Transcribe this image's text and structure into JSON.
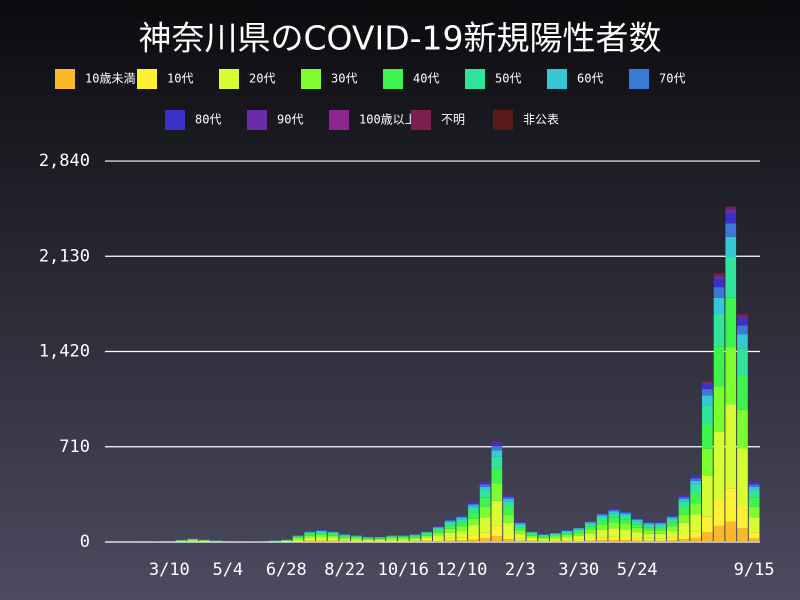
{
  "chart_data": {
    "type": "stacked_bar",
    "title": "神奈川県のCOVID-19新規陽性者数",
    "categories": [
      null,
      null,
      null,
      null,
      null,
      "3/10",
      null,
      null,
      null,
      null,
      "5/4",
      null,
      null,
      null,
      null,
      "6/28",
      null,
      null,
      null,
      null,
      "8/22",
      null,
      null,
      null,
      null,
      "10/16",
      null,
      null,
      null,
      null,
      "12/10",
      null,
      null,
      null,
      null,
      "2/3",
      null,
      null,
      null,
      null,
      "3/30",
      null,
      null,
      null,
      null,
      "5/24",
      null,
      null,
      null,
      null,
      null,
      null,
      null,
      null,
      null,
      "9/15"
    ],
    "series": [
      {
        "name": "10歳未満",
        "color": "#fbb92a",
        "values": [
          0,
          0,
          0,
          0,
          0,
          0,
          1,
          2,
          1,
          1,
          0,
          0,
          0,
          0,
          1,
          1,
          3,
          5,
          5,
          5,
          4,
          3,
          2,
          2,
          3,
          3,
          4,
          5,
          7,
          10,
          12,
          18,
          27,
          45,
          21,
          9,
          5,
          4,
          4,
          5,
          7,
          10,
          13,
          15,
          14,
          11,
          9,
          9,
          12,
          21,
          30,
          72,
          120,
          150,
          102,
          27
        ]
      },
      {
        "name": "10代",
        "color": "#fef131",
        "values": [
          0,
          0,
          0,
          0,
          1,
          1,
          2,
          3,
          2,
          1,
          1,
          1,
          0,
          1,
          1,
          2,
          5,
          8,
          9,
          8,
          6,
          5,
          4,
          4,
          5,
          5,
          6,
          8,
          12,
          17,
          20,
          30,
          45,
          75,
          35,
          15,
          8,
          6,
          7,
          9,
          11,
          16,
          22,
          25,
          23,
          18,
          15,
          15,
          20,
          35,
          50,
          120,
          200,
          250,
          170,
          45
        ]
      },
      {
        "name": "20代",
        "color": "#d6fe33",
        "values": [
          0,
          0,
          0,
          1,
          1,
          2,
          4,
          6,
          5,
          3,
          2,
          1,
          1,
          1,
          3,
          5,
          13,
          20,
          23,
          20,
          15,
          13,
          10,
          10,
          13,
          13,
          15,
          20,
          30,
          43,
          50,
          75,
          113,
          188,
          88,
          38,
          20,
          15,
          18,
          23,
          28,
          40,
          55,
          63,
          58,
          45,
          38,
          38,
          50,
          88,
          125,
          300,
          500,
          625,
          425,
          113
        ]
      },
      {
        "name": "30代",
        "color": "#7cfe2e",
        "values": [
          0,
          0,
          0,
          0,
          1,
          1,
          3,
          4,
          3,
          2,
          1,
          1,
          1,
          1,
          2,
          3,
          9,
          14,
          15,
          14,
          10,
          9,
          7,
          7,
          9,
          9,
          10,
          14,
          20,
          29,
          34,
          51,
          77,
          128,
          60,
          26,
          14,
          10,
          12,
          15,
          19,
          27,
          37,
          43,
          39,
          31,
          26,
          26,
          34,
          60,
          85,
          204,
          340,
          425,
          289,
          77
        ]
      },
      {
        "name": "40代",
        "color": "#3ef34b",
        "values": [
          0,
          0,
          0,
          0,
          1,
          1,
          2,
          4,
          3,
          2,
          1,
          1,
          0,
          1,
          2,
          3,
          8,
          12,
          14,
          12,
          9,
          8,
          6,
          6,
          8,
          8,
          9,
          12,
          18,
          26,
          30,
          45,
          68,
          113,
          53,
          23,
          12,
          9,
          11,
          14,
          17,
          24,
          33,
          38,
          35,
          27,
          23,
          23,
          30,
          53,
          75,
          180,
          300,
          375,
          255,
          68
        ]
      },
      {
        "name": "50代",
        "color": "#30e59b",
        "values": [
          0,
          0,
          0,
          0,
          1,
          1,
          2,
          3,
          2,
          1,
          1,
          1,
          0,
          1,
          1,
          2,
          6,
          10,
          11,
          10,
          7,
          6,
          5,
          5,
          6,
          6,
          7,
          10,
          14,
          20,
          24,
          36,
          54,
          90,
          42,
          18,
          10,
          7,
          8,
          11,
          13,
          19,
          26,
          30,
          28,
          22,
          18,
          18,
          24,
          42,
          60,
          144,
          240,
          300,
          204,
          54
        ]
      },
      {
        "name": "60代",
        "color": "#35c7d5",
        "values": [
          0,
          0,
          0,
          0,
          0,
          0,
          1,
          2,
          1,
          1,
          0,
          0,
          0,
          0,
          1,
          1,
          3,
          5,
          5,
          5,
          4,
          3,
          2,
          2,
          3,
          3,
          4,
          5,
          7,
          10,
          12,
          18,
          27,
          45,
          21,
          9,
          5,
          4,
          4,
          5,
          7,
          10,
          13,
          15,
          14,
          11,
          9,
          9,
          12,
          21,
          30,
          72,
          120,
          150,
          102,
          27
        ]
      },
      {
        "name": "70代",
        "color": "#3d78d8",
        "values": [
          0,
          0,
          0,
          0,
          0,
          0,
          1,
          1,
          1,
          0,
          0,
          0,
          0,
          0,
          0,
          1,
          2,
          3,
          4,
          3,
          2,
          2,
          2,
          2,
          2,
          2,
          2,
          3,
          5,
          7,
          8,
          12,
          18,
          30,
          14,
          6,
          3,
          2,
          3,
          4,
          4,
          6,
          9,
          10,
          9,
          7,
          6,
          6,
          8,
          14,
          20,
          48,
          80,
          100,
          68,
          18
        ]
      },
      {
        "name": "80代",
        "color": "#3b31c8",
        "values": [
          0,
          0,
          0,
          0,
          0,
          0,
          0,
          1,
          1,
          0,
          0,
          0,
          0,
          0,
          0,
          1,
          2,
          2,
          3,
          2,
          2,
          2,
          1,
          1,
          2,
          2,
          2,
          2,
          4,
          5,
          6,
          9,
          14,
          23,
          11,
          5,
          2,
          2,
          2,
          3,
          3,
          5,
          7,
          8,
          7,
          5,
          5,
          5,
          6,
          11,
          15,
          36,
          60,
          75,
          51,
          14
        ]
      },
      {
        "name": "90代",
        "color": "#6a2ca8",
        "values": [
          0,
          0,
          0,
          0,
          0,
          0,
          0,
          0,
          0,
          0,
          0,
          0,
          0,
          0,
          0,
          0,
          1,
          1,
          1,
          1,
          1,
          1,
          0,
          0,
          1,
          1,
          1,
          1,
          1,
          2,
          2,
          3,
          5,
          8,
          4,
          2,
          1,
          1,
          1,
          1,
          1,
          2,
          2,
          3,
          2,
          2,
          2,
          2,
          2,
          4,
          5,
          12,
          20,
          25,
          17,
          5
        ]
      },
      {
        "name": "100歳以上",
        "color": "#8e2690",
        "values": [
          0,
          0,
          0,
          0,
          0,
          0,
          0,
          0,
          0,
          0,
          0,
          0,
          0,
          0,
          0,
          0,
          0,
          0,
          0,
          0,
          0,
          0,
          0,
          0,
          0,
          0,
          0,
          0,
          0,
          0,
          0,
          0,
          0,
          0,
          0,
          0,
          0,
          0,
          0,
          0,
          0,
          0,
          0,
          0,
          0,
          0,
          0,
          0,
          0,
          0,
          0,
          0,
          0,
          0,
          0,
          0
        ]
      },
      {
        "name": "不明",
        "color": "#7a2050",
        "values": [
          0,
          0,
          0,
          0,
          0,
          0,
          0,
          0,
          0,
          0,
          0,
          0,
          0,
          0,
          0,
          0,
          1,
          1,
          1,
          1,
          1,
          1,
          0,
          0,
          1,
          1,
          1,
          1,
          1,
          2,
          2,
          3,
          5,
          8,
          4,
          2,
          1,
          1,
          1,
          1,
          1,
          2,
          2,
          3,
          2,
          2,
          2,
          2,
          2,
          4,
          5,
          12,
          20,
          25,
          17,
          5
        ]
      },
      {
        "name": "非公表",
        "color": "#5a1a1a",
        "values": [
          0,
          0,
          0,
          0,
          0,
          0,
          0,
          0,
          0,
          0,
          0,
          0,
          0,
          0,
          0,
          0,
          0,
          0,
          0,
          0,
          0,
          0,
          0,
          0,
          0,
          0,
          0,
          0,
          0,
          0,
          0,
          0,
          0,
          0,
          0,
          0,
          0,
          0,
          0,
          0,
          0,
          0,
          0,
          0,
          0,
          0,
          0,
          0,
          0,
          0,
          0,
          0,
          0,
          0,
          0,
          0
        ]
      }
    ],
    "ylim": [
      0,
      2900
    ],
    "yticks": [
      0,
      710,
      {
        "value": 1420,
        "label": "1,420"
      },
      {
        "value": 2130,
        "label": "2,130"
      },
      {
        "value": 2840,
        "label": "2,840"
      }
    ],
    "grid": true
  }
}
